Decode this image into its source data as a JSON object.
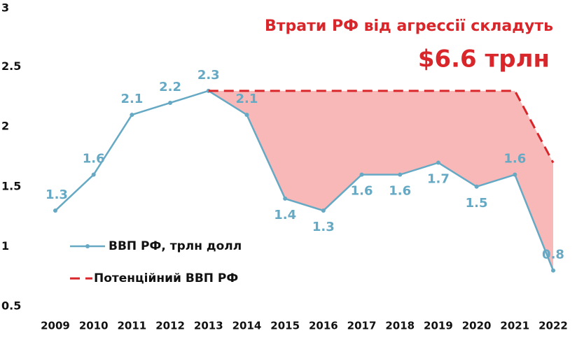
{
  "chart_data": {
    "type": "line",
    "title": "Втрати РФ від агрессії складуть",
    "subtitle": "$6.6 трлн",
    "categories": [
      "2009",
      "2010",
      "2011",
      "2012",
      "2013",
      "2014",
      "2015",
      "2016",
      "2017",
      "2018",
      "2019",
      "2020",
      "2021",
      "2022"
    ],
    "series": [
      {
        "name": "ВВП РФ, трлн долл",
        "color": "#66a9c4",
        "values": [
          1.3,
          1.6,
          2.1,
          2.2,
          2.3,
          2.1,
          1.4,
          1.3,
          1.6,
          1.6,
          1.7,
          1.5,
          1.6,
          0.8
        ]
      },
      {
        "name": "Потенційний ВВП РФ",
        "color": "#d9262b",
        "values": [
          null,
          null,
          null,
          null,
          2.3,
          2.3,
          2.3,
          2.3,
          2.3,
          2.3,
          2.3,
          2.3,
          2.3,
          1.7
        ]
      }
    ],
    "fill_color": "#f8b8b8",
    "ylim": [
      0.5,
      3
    ],
    "yticks": [
      0.5,
      1,
      1.5,
      2,
      2.5,
      3
    ],
    "grid": false,
    "legend": "left"
  }
}
